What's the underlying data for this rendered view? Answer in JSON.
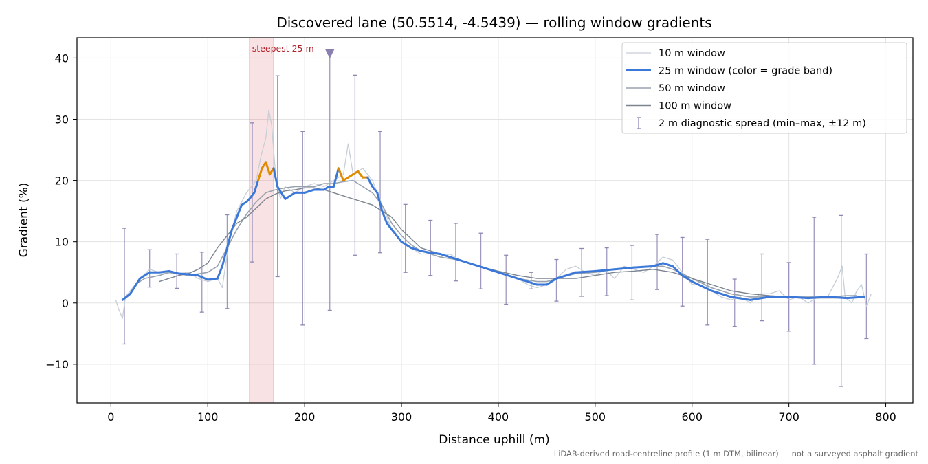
{
  "chart_data": {
    "type": "line",
    "title": "Discovered lane (50.5514, -4.5439) — rolling window gradients",
    "xlabel": "Distance uphill (m)",
    "ylabel": "Gradient (%)",
    "xlim": [
      -35,
      828
    ],
    "ylim": [
      -16.3,
      43.3
    ],
    "x_ticks": [
      0,
      100,
      200,
      300,
      400,
      500,
      600,
      700,
      800
    ],
    "y_ticks": [
      -10,
      0,
      10,
      20,
      30,
      40
    ],
    "y_tick_labels": [
      "−10",
      "0",
      "10",
      "20",
      "30",
      "40"
    ],
    "grid": true,
    "legend_position": "top-right",
    "footnote": "LiDAR-derived road-centreline profile (1 m DTM, bilinear) — not a surveyed asphalt gradient",
    "annotation": {
      "text": "steepest 25 m",
      "x_range": [
        143,
        168
      ],
      "marker_x": 226,
      "marker_y": 40.6
    },
    "series": [
      {
        "name": "10 m window",
        "color": "#c6ced6",
        "width": 1.3,
        "points": [
          [
            5,
            0.5
          ],
          [
            8,
            -1
          ],
          [
            12,
            -2.5
          ],
          [
            15,
            1
          ],
          [
            20,
            2
          ],
          [
            30,
            4
          ],
          [
            40,
            5.5
          ],
          [
            50,
            5
          ],
          [
            60,
            4.8
          ],
          [
            70,
            4.8
          ],
          [
            80,
            5
          ],
          [
            90,
            4
          ],
          [
            100,
            3.5
          ],
          [
            110,
            4
          ],
          [
            115,
            2.5
          ],
          [
            120,
            8
          ],
          [
            125,
            12
          ],
          [
            130,
            15
          ],
          [
            140,
            18
          ],
          [
            145,
            19
          ],
          [
            150,
            20
          ],
          [
            155,
            24
          ],
          [
            160,
            27
          ],
          [
            163,
            31.5
          ],
          [
            166,
            29
          ],
          [
            170,
            21
          ],
          [
            175,
            17
          ],
          [
            180,
            19
          ],
          [
            190,
            18
          ],
          [
            200,
            19
          ],
          [
            210,
            19.5
          ],
          [
            220,
            19
          ],
          [
            230,
            20
          ],
          [
            240,
            21
          ],
          [
            245,
            26
          ],
          [
            250,
            21
          ],
          [
            260,
            22
          ],
          [
            270,
            20
          ],
          [
            280,
            16
          ],
          [
            290,
            12
          ],
          [
            300,
            10
          ],
          [
            310,
            9
          ],
          [
            320,
            8
          ],
          [
            330,
            8
          ],
          [
            340,
            7.5
          ],
          [
            350,
            8
          ],
          [
            360,
            7
          ],
          [
            380,
            6
          ],
          [
            400,
            5
          ],
          [
            420,
            4
          ],
          [
            430,
            3
          ],
          [
            440,
            2.5
          ],
          [
            450,
            3
          ],
          [
            460,
            4
          ],
          [
            470,
            5.5
          ],
          [
            480,
            6
          ],
          [
            490,
            5
          ],
          [
            500,
            4.5
          ],
          [
            510,
            5.5
          ],
          [
            520,
            4
          ],
          [
            530,
            6
          ],
          [
            540,
            5.5
          ],
          [
            550,
            5
          ],
          [
            560,
            6
          ],
          [
            570,
            7.5
          ],
          [
            580,
            7
          ],
          [
            590,
            5
          ],
          [
            600,
            3
          ],
          [
            610,
            3.5
          ],
          [
            620,
            2
          ],
          [
            630,
            1
          ],
          [
            640,
            0.5
          ],
          [
            650,
            1
          ],
          [
            660,
            0
          ],
          [
            670,
            1.5
          ],
          [
            680,
            1.5
          ],
          [
            690,
            2
          ],
          [
            700,
            0.5
          ],
          [
            710,
            1
          ],
          [
            720,
            0
          ],
          [
            730,
            1
          ],
          [
            740,
            1
          ],
          [
            750,
            4
          ],
          [
            755,
            6
          ],
          [
            758,
            1
          ],
          [
            765,
            0
          ],
          [
            770,
            2
          ],
          [
            775,
            3
          ],
          [
            780,
            -0.5
          ],
          [
            785,
            1.5
          ]
        ]
      },
      {
        "name": "25 m window (color = grade band)",
        "color": "#3b78d8",
        "width": 3,
        "band_threshold": 20,
        "band_color": "#e08a00",
        "points": [
          [
            12,
            0.5
          ],
          [
            20,
            1.5
          ],
          [
            30,
            4
          ],
          [
            40,
            5
          ],
          [
            50,
            5
          ],
          [
            60,
            5.2
          ],
          [
            70,
            4.8
          ],
          [
            80,
            4.7
          ],
          [
            90,
            4.5
          ],
          [
            100,
            3.8
          ],
          [
            110,
            4
          ],
          [
            115,
            6
          ],
          [
            120,
            9
          ],
          [
            125,
            12
          ],
          [
            130,
            14
          ],
          [
            135,
            16
          ],
          [
            140,
            16.5
          ],
          [
            143,
            17
          ],
          [
            148,
            18
          ],
          [
            152,
            20
          ],
          [
            156,
            22
          ],
          [
            160,
            23
          ],
          [
            164,
            21
          ],
          [
            168,
            22
          ],
          [
            172,
            19
          ],
          [
            176,
            18
          ],
          [
            180,
            17
          ],
          [
            185,
            17.5
          ],
          [
            190,
            18
          ],
          [
            200,
            18
          ],
          [
            210,
            18.5
          ],
          [
            220,
            18.5
          ],
          [
            225,
            19
          ],
          [
            230,
            19
          ],
          [
            235,
            22
          ],
          [
            240,
            20
          ],
          [
            245,
            20.5
          ],
          [
            250,
            21
          ],
          [
            255,
            21.5
          ],
          [
            260,
            20.5
          ],
          [
            265,
            20.5
          ],
          [
            270,
            19
          ],
          [
            275,
            18
          ],
          [
            280,
            15
          ],
          [
            285,
            13
          ],
          [
            290,
            12
          ],
          [
            300,
            10
          ],
          [
            310,
            9
          ],
          [
            320,
            8.5
          ],
          [
            330,
            8.2
          ],
          [
            340,
            8
          ],
          [
            350,
            7.5
          ],
          [
            360,
            7
          ],
          [
            380,
            6
          ],
          [
            400,
            5
          ],
          [
            420,
            4
          ],
          [
            440,
            3
          ],
          [
            450,
            3
          ],
          [
            460,
            4
          ],
          [
            480,
            5
          ],
          [
            500,
            5.2
          ],
          [
            520,
            5.5
          ],
          [
            540,
            5.8
          ],
          [
            560,
            6
          ],
          [
            570,
            6.5
          ],
          [
            580,
            6
          ],
          [
            590,
            4.5
          ],
          [
            600,
            3.5
          ],
          [
            620,
            2
          ],
          [
            640,
            1
          ],
          [
            660,
            0.5
          ],
          [
            680,
            1
          ],
          [
            700,
            1
          ],
          [
            720,
            0.8
          ],
          [
            740,
            1
          ],
          [
            760,
            0.8
          ],
          [
            778,
            1
          ]
        ]
      },
      {
        "name": "50 m window",
        "color": "#98a2ae",
        "width": 1.6,
        "points": [
          [
            25,
            3
          ],
          [
            35,
            4
          ],
          [
            50,
            4.5
          ],
          [
            60,
            5
          ],
          [
            80,
            4.5
          ],
          [
            100,
            5
          ],
          [
            110,
            6
          ],
          [
            120,
            9
          ],
          [
            130,
            12
          ],
          [
            140,
            14.5
          ],
          [
            150,
            16.5
          ],
          [
            160,
            18
          ],
          [
            170,
            18.5
          ],
          [
            180,
            18.8
          ],
          [
            190,
            19
          ],
          [
            200,
            19
          ],
          [
            210,
            19
          ],
          [
            220,
            19.5
          ],
          [
            230,
            19.5
          ],
          [
            240,
            19.8
          ],
          [
            250,
            20
          ],
          [
            260,
            19
          ],
          [
            270,
            18
          ],
          [
            280,
            16
          ],
          [
            290,
            13
          ],
          [
            300,
            11
          ],
          [
            310,
            9.5
          ],
          [
            320,
            8.5
          ],
          [
            330,
            8
          ],
          [
            340,
            7.5
          ],
          [
            360,
            7
          ],
          [
            380,
            6
          ],
          [
            400,
            5
          ],
          [
            420,
            4
          ],
          [
            440,
            3.5
          ],
          [
            450,
            3.5
          ],
          [
            460,
            4
          ],
          [
            480,
            4.8
          ],
          [
            500,
            5
          ],
          [
            520,
            5.5
          ],
          [
            540,
            5.8
          ],
          [
            560,
            6
          ],
          [
            570,
            6
          ],
          [
            580,
            5.5
          ],
          [
            590,
            4.8
          ],
          [
            600,
            4
          ],
          [
            620,
            2.5
          ],
          [
            640,
            1.5
          ],
          [
            660,
            1
          ],
          [
            680,
            1
          ],
          [
            700,
            1
          ],
          [
            720,
            1
          ],
          [
            740,
            1
          ],
          [
            760,
            1.2
          ],
          [
            770,
            1.2
          ]
        ]
      },
      {
        "name": "100 m window",
        "color": "#7c8490",
        "width": 1.4,
        "points": [
          [
            50,
            3.5
          ],
          [
            60,
            4
          ],
          [
            70,
            4.5
          ],
          [
            80,
            4.8
          ],
          [
            90,
            5.5
          ],
          [
            100,
            6.5
          ],
          [
            110,
            9
          ],
          [
            120,
            11
          ],
          [
            130,
            13
          ],
          [
            140,
            14
          ],
          [
            150,
            15.5
          ],
          [
            160,
            17
          ],
          [
            170,
            17.8
          ],
          [
            180,
            18.3
          ],
          [
            190,
            18.5
          ],
          [
            200,
            18.8
          ],
          [
            210,
            18.8
          ],
          [
            220,
            18.5
          ],
          [
            230,
            18
          ],
          [
            240,
            17.5
          ],
          [
            250,
            17
          ],
          [
            260,
            16.5
          ],
          [
            270,
            16
          ],
          [
            280,
            15
          ],
          [
            290,
            14
          ],
          [
            300,
            12
          ],
          [
            310,
            10.5
          ],
          [
            320,
            9
          ],
          [
            330,
            8.5
          ],
          [
            340,
            8
          ],
          [
            360,
            7
          ],
          [
            380,
            6
          ],
          [
            400,
            5.2
          ],
          [
            420,
            4.5
          ],
          [
            440,
            4
          ],
          [
            460,
            4
          ],
          [
            480,
            4
          ],
          [
            500,
            4.5
          ],
          [
            520,
            5
          ],
          [
            540,
            5.2
          ],
          [
            560,
            5.5
          ],
          [
            580,
            5
          ],
          [
            590,
            4.5
          ],
          [
            600,
            4
          ],
          [
            620,
            3
          ],
          [
            640,
            2
          ],
          [
            660,
            1.5
          ],
          [
            680,
            1.2
          ],
          [
            700,
            1
          ],
          [
            720,
            0.8
          ],
          [
            740,
            0.8
          ],
          [
            750,
            0.8
          ]
        ]
      }
    ],
    "errorbars": {
      "name": "2 m diagnostic spread (min–max, ±12 m)",
      "color": "#8f86b3",
      "x": [
        14,
        40,
        68,
        94,
        120,
        146,
        172,
        198,
        226,
        252,
        278,
        304,
        330,
        356,
        382,
        408,
        434,
        460,
        486,
        512,
        538,
        564,
        590,
        616,
        644,
        672,
        700,
        726,
        754,
        780
      ],
      "low": [
        -6.7,
        2.6,
        2.4,
        -1.5,
        -0.9,
        6.7,
        4.3,
        -3.6,
        -1.2,
        7.8,
        8.2,
        5.0,
        4.5,
        3.6,
        2.3,
        -0.2,
        2.3,
        0.3,
        1.1,
        1.2,
        0.5,
        2.2,
        -0.5,
        -3.6,
        -3.8,
        -2.9,
        -4.6,
        -10.0,
        -13.6,
        -5.8
      ],
      "high": [
        12.2,
        8.7,
        8.0,
        8.3,
        14.4,
        29.4,
        37.1,
        28.0,
        40.6,
        37.2,
        28.0,
        16.1,
        13.5,
        13.0,
        11.4,
        7.8,
        5.0,
        7.1,
        8.9,
        9.0,
        9.4,
        11.2,
        10.7,
        10.4,
        3.9,
        8.0,
        6.6,
        14.0,
        14.3,
        8.0
      ]
    }
  }
}
